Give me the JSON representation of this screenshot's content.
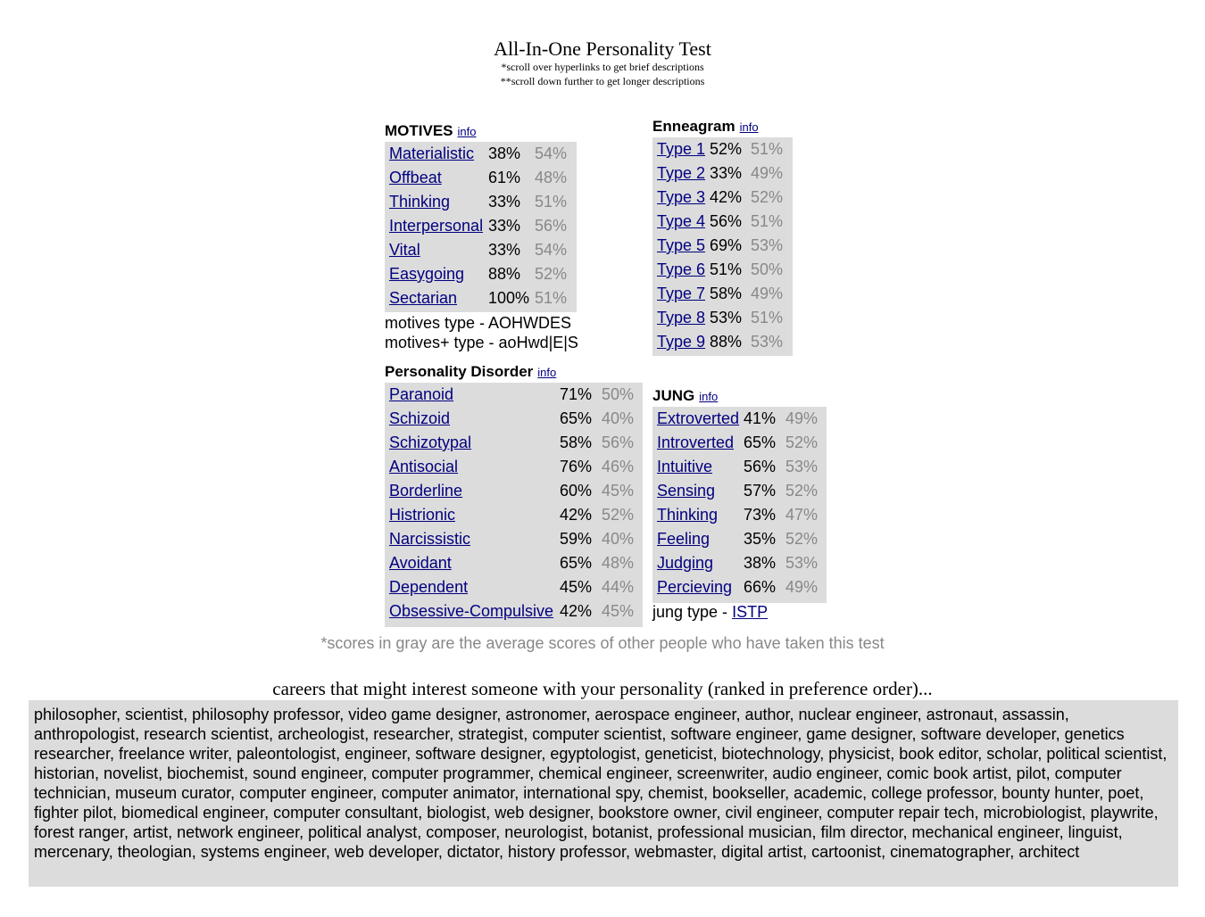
{
  "header": {
    "title": "All-In-One Personality Test",
    "sub1": "*scroll over hyperlinks to get brief descriptions",
    "sub2": "**scroll down further to get longer descriptions"
  },
  "info_label": "info",
  "motives": {
    "title": "MOTIVES",
    "rows": [
      {
        "label": "Materialistic",
        "score": "38%",
        "avg": "54%"
      },
      {
        "label": "Offbeat",
        "score": "61%",
        "avg": "48%"
      },
      {
        "label": "Thinking",
        "score": "33%",
        "avg": "51%"
      },
      {
        "label": "Interpersonal",
        "score": "33%",
        "avg": "56%"
      },
      {
        "label": "Vital",
        "score": "33%",
        "avg": "54%"
      },
      {
        "label": "Easygoing",
        "score": "88%",
        "avg": "52%"
      },
      {
        "label": "Sectarian",
        "score": "100%",
        "avg": "51%"
      }
    ],
    "type_line": "motives type - AOHWDES",
    "plus_line": "motives+ type - aoHwd|E|S"
  },
  "enneagram": {
    "title": "Enneagram",
    "rows": [
      {
        "label": "Type 1",
        "score": "52%",
        "avg": "51%"
      },
      {
        "label": "Type 2",
        "score": "33%",
        "avg": "49%"
      },
      {
        "label": "Type 3",
        "score": "42%",
        "avg": "52%"
      },
      {
        "label": "Type 4",
        "score": "56%",
        "avg": "51%"
      },
      {
        "label": "Type 5",
        "score": "69%",
        "avg": "53%"
      },
      {
        "label": "Type 6",
        "score": "51%",
        "avg": "50%"
      },
      {
        "label": "Type 7",
        "score": "58%",
        "avg": "49%"
      },
      {
        "label": "Type 8",
        "score": "53%",
        "avg": "51%"
      },
      {
        "label": "Type 9",
        "score": "88%",
        "avg": "53%"
      }
    ]
  },
  "disorder": {
    "title": "Personality Disorder",
    "rows": [
      {
        "label": "Paranoid",
        "score": "71%",
        "avg": "50%"
      },
      {
        "label": "Schizoid",
        "score": "65%",
        "avg": "40%"
      },
      {
        "label": "Schizotypal",
        "score": "58%",
        "avg": "56%"
      },
      {
        "label": "Antisocial",
        "score": "76%",
        "avg": "46%"
      },
      {
        "label": "Borderline",
        "score": "60%",
        "avg": "45%"
      },
      {
        "label": "Histrionic",
        "score": "42%",
        "avg": "52%"
      },
      {
        "label": "Narcissistic",
        "score": "59%",
        "avg": "40%"
      },
      {
        "label": "Avoidant",
        "score": "65%",
        "avg": "48%"
      },
      {
        "label": "Dependent",
        "score": "45%",
        "avg": "44%"
      },
      {
        "label": "Obsessive-Compulsive",
        "score": "42%",
        "avg": "45%"
      }
    ]
  },
  "jung": {
    "title": "JUNG",
    "rows": [
      {
        "label": "Extroverted",
        "score": "41%",
        "avg": "49%"
      },
      {
        "label": "Introverted",
        "score": "65%",
        "avg": "52%"
      },
      {
        "label": "Intuitive",
        "score": "56%",
        "avg": "53%"
      },
      {
        "label": "Sensing",
        "score": "57%",
        "avg": "52%"
      },
      {
        "label": "Thinking",
        "score": "73%",
        "avg": "47%"
      },
      {
        "label": "Feeling",
        "score": "35%",
        "avg": "52%"
      },
      {
        "label": "Judging",
        "score": "38%",
        "avg": "53%"
      },
      {
        "label": "Percieving",
        "score": "66%",
        "avg": "49%"
      }
    ],
    "type_prefix": "jung type - ",
    "type_value": "ISTP"
  },
  "note": "*scores in gray are the average scores of other people who have taken this test",
  "careers": {
    "heading": "careers that might interest someone with your personality (ranked in preference order)...",
    "text": "philosopher, scientist, philosophy professor, video game designer, astronomer, aerospace engineer, author, nuclear engineer, astronaut, assassin, anthropologist, research scientist, archeologist, researcher, strategist, computer scientist, software engineer, game designer, software developer, genetics researcher, freelance writer, paleontologist, engineer, software designer, egyptologist, geneticist, biotechnology, physicist, book editor, scholar, political scientist, historian, novelist, biochemist, sound engineer, computer programmer, chemical engineer, screenwriter, audio engineer, comic book artist, pilot, computer technician, museum curator, computer engineer, computer animator, international spy, chemist, bookseller, academic, college professor, bounty hunter, poet, fighter pilot, biomedical engineer, computer consultant, biologist, web designer, bookstore owner, civil engineer, computer repair tech, microbiologist, playwrite, forest ranger, artist, network engineer, political analyst, composer, neurologist, botanist, professional musician, film director, mechanical engineer, linguist, mercenary, theologian, systems engineer, web developer, dictator, history professor, webmaster, digital artist, cartoonist, cinematographer, architect"
  },
  "colors": {
    "link": "#000080",
    "panel_bg": "#dcdcdc",
    "avg_gray": "#888888"
  }
}
